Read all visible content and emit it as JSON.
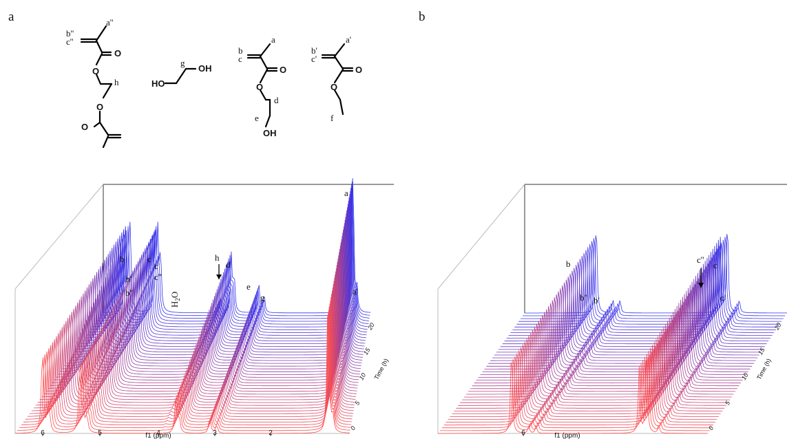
{
  "panels": {
    "a": {
      "label": "a"
    },
    "b": {
      "label": "b"
    }
  },
  "molecules": {
    "edma": {
      "labels": [
        "a''",
        "b''",
        "c''",
        "h"
      ],
      "atoms": [
        "O",
        "O",
        "O",
        "O"
      ]
    },
    "eg": {
      "labels": [
        "g"
      ],
      "atoms": [
        "HO",
        "OH"
      ]
    },
    "hema": {
      "labels": [
        "a",
        "b",
        "c",
        "d",
        "e"
      ],
      "atoms": [
        "O",
        "O",
        "OH"
      ]
    },
    "ema": {
      "labels": [
        "a'",
        "b'",
        "c'",
        "f"
      ],
      "atoms": [
        "O",
        "O"
      ]
    }
  },
  "chart_data": [
    {
      "type": "waterfall",
      "panel": "a",
      "xlabel": "f1 (ppm)",
      "zlabel": "Time (h)",
      "x_axis_reversed": true,
      "xlim": [
        6.5,
        1.6
      ],
      "x_ticks": [
        "6",
        "5",
        "4",
        "3",
        "2"
      ],
      "z_ticks": [
        "0",
        "5",
        "10",
        "15",
        "20"
      ],
      "zlim": [
        0,
        24
      ],
      "colors": {
        "early": "#ff4d4d",
        "late": "#3030ee"
      },
      "peaks": [
        {
          "name": "b",
          "ppm": 6.1,
          "start": 0.55,
          "end": 0.6
        },
        {
          "name": "b'",
          "ppm": 6.02,
          "start": 0.1,
          "end": 0.4
        },
        {
          "name": "b''",
          "ppm": 6.0,
          "start": 0.1,
          "end": 0.3
        },
        {
          "name": "c",
          "ppm": 5.55,
          "start": 0.5,
          "end": 0.55
        },
        {
          "name": "c'",
          "ppm": 5.5,
          "start": 0.1,
          "end": 0.45
        },
        {
          "name": "c''",
          "ppm": 5.45,
          "start": 0.1,
          "end": 0.35
        },
        {
          "name": "H2O",
          "ppm": 4.35,
          "start": 0.0,
          "end": 0.1
        },
        {
          "name": "h",
          "ppm": 4.15,
          "start": 0.2,
          "end": 0.35
        },
        {
          "name": "d",
          "ppm": 4.1,
          "start": 0.1,
          "end": 0.22
        },
        {
          "name": "e",
          "ppm": 3.65,
          "start": 0.1,
          "end": 0.2
        },
        {
          "name": "g",
          "ppm": 3.55,
          "start": 0.05,
          "end": 0.12
        },
        {
          "name": "a",
          "ppm": 1.92,
          "start": 0.8,
          "end": 0.92
        },
        {
          "name": "a'",
          "ppm": 1.85,
          "start": 0.1,
          "end": 0.15
        }
      ]
    },
    {
      "type": "waterfall",
      "panel": "b",
      "xlabel": "f1 (ppm)",
      "zlabel": "Time (h)",
      "x_axis_reversed": true,
      "xlim": [
        6.4,
        5.3
      ],
      "x_ticks": [
        "6"
      ],
      "z_ticks": [
        "0",
        "5",
        "10",
        "15",
        "20"
      ],
      "zlim": [
        0,
        24
      ],
      "colors": {
        "early": "#ff4d4d",
        "late": "#3030ee"
      },
      "peaks": [
        {
          "name": "b",
          "ppm": 6.1,
          "start": 0.55,
          "end": 0.6
        },
        {
          "name": "b''",
          "ppm": 6.03,
          "start": 0.05,
          "end": 0.08
        },
        {
          "name": "b'",
          "ppm": 6.0,
          "start": 0.05,
          "end": 0.08
        },
        {
          "name": "c''",
          "ppm": 5.58,
          "start": 0.4,
          "end": 0.45
        },
        {
          "name": "c",
          "ppm": 5.55,
          "start": 0.55,
          "end": 0.6
        },
        {
          "name": "c'",
          "ppm": 5.5,
          "start": 0.05,
          "end": 0.08
        }
      ]
    }
  ]
}
